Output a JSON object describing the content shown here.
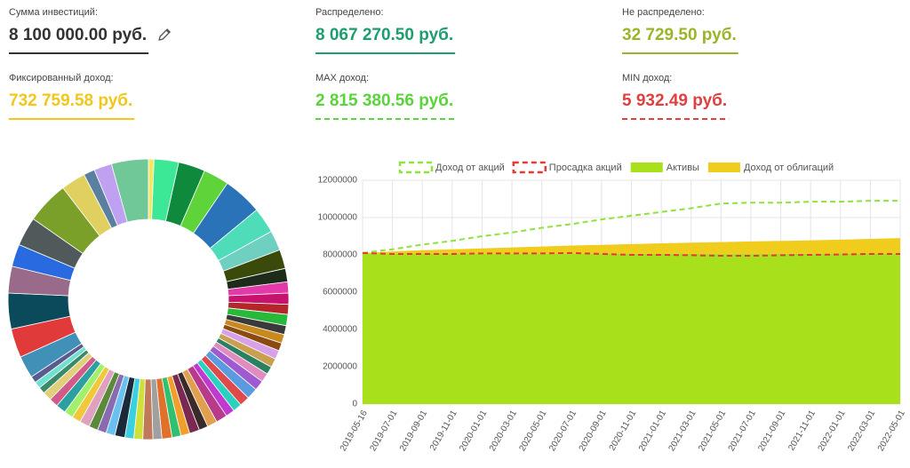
{
  "stats": [
    {
      "label": "Сумма инвестиций:",
      "value": "8 100 000.00 руб.",
      "color": "#333333",
      "underline": "solid"
    },
    {
      "label": "Распределено:",
      "value": "8 067 270.50 руб.",
      "color": "#1e9e6e",
      "underline": "solid"
    },
    {
      "label": "Не распределено:",
      "value": "32 729.50 руб.",
      "color": "#9ab52a",
      "underline": "solid"
    },
    {
      "label": "Фиксированный доход:",
      "value": "732 759.58 руб.",
      "color": "#f2c71b",
      "underline": "solid"
    },
    {
      "label": "MAX доход:",
      "value": "2 815 380.56 руб.",
      "color": "#5ad43a",
      "underline": "dashed"
    },
    {
      "label": "MIN доход:",
      "value": "5 932.49 руб.",
      "color": "#e04040",
      "underline": "dashed"
    }
  ],
  "chart_data": [
    {
      "type": "pie",
      "donut": true,
      "values": [
        0.5,
        2.2,
        2.4,
        2.3,
        3.5,
        2.3,
        1.8,
        1.7,
        1.2,
        1.0,
        1.0,
        0.9,
        1.0,
        0.8,
        0.8,
        0.7,
        0.8,
        0.8,
        0.7,
        0.8,
        0.9,
        1.0,
        0.9,
        0.8,
        0.8,
        1.0,
        0.9,
        0.8,
        0.9,
        0.8,
        0.8,
        0.9,
        0.8,
        0.9,
        0.8,
        0.8,
        0.9,
        0.8,
        0.8,
        0.8,
        0.9,
        0.8,
        0.8,
        0.9,
        0.8,
        0.8,
        0.6,
        0.6,
        0.6,
        2.0,
        2.6,
        3.2,
        2.4,
        2.0,
        2.6,
        3.8,
        2.2,
        1.0,
        1.6,
        3.3
      ],
      "colors": [
        "#f5e663",
        "#3ce896",
        "#0f8a3c",
        "#5fd43a",
        "#2b73b8",
        "#4fdcb8",
        "#6fcfc0",
        "#3a4a0a",
        "#1d2b1a",
        "#e23aa8",
        "#c7126e",
        "#b5262a",
        "#28b83a",
        "#3a3a3a",
        "#c88a1e",
        "#8a4a10",
        "#d8a0e8",
        "#c8a050",
        "#2a8060",
        "#e08cc0",
        "#a05ad0",
        "#5a9ae0",
        "#e04a4a",
        "#2ad0c0",
        "#c03ad0",
        "#b83a8a",
        "#e0a050",
        "#3a2a2a",
        "#7a2a50",
        "#f0a02a",
        "#30c070",
        "#e0702a",
        "#a0a0a0",
        "#c07a5a",
        "#d0e03a",
        "#3ad0e0",
        "#1a2a3a",
        "#6ac0f0",
        "#8a6ab0",
        "#5a8a3a",
        "#e0a0c0",
        "#f0c83a",
        "#a0f06a",
        "#2aa0a0",
        "#d05a8a",
        "#e0d07a",
        "#3a8a6a",
        "#70e0d0",
        "#5a5a90",
        "#4090b8",
        "#e03a3a",
        "#0a4a5a",
        "#9a6a8a",
        "#2a6ae0",
        "#505a5a",
        "#7aa02a",
        "#e0d060",
        "#5a80a0",
        "#c0a0f0",
        "#70c898"
      ]
    },
    {
      "type": "line",
      "stacked": true,
      "grid": true,
      "categories": [
        "2019-05-16",
        "2019-07-01",
        "2019-09-01",
        "2019-11-01",
        "2020-01-01",
        "2020-03-01",
        "2020-05-01",
        "2020-07-01",
        "2020-09-01",
        "2020-11-01",
        "2021-01-01",
        "2021-03-01",
        "2021-05-01",
        "2021-07-01",
        "2021-09-01",
        "2021-11-01",
        "2022-01-01",
        "2022-03-01",
        "2022-05-01"
      ],
      "ylim": [
        0,
        12000000
      ],
      "yticks": [
        0,
        2000000,
        4000000,
        6000000,
        8000000,
        10000000,
        12000000
      ],
      "series": [
        {
          "name": "Доход от акций",
          "kind": "line",
          "dashed": true,
          "color": "#8fe33b",
          "values": [
            8100000,
            8300000,
            8550000,
            8750000,
            9000000,
            9200000,
            9450000,
            9650000,
            9900000,
            10100000,
            10300000,
            10500000,
            10750000,
            10800000,
            10800000,
            10850000,
            10850000,
            10900000,
            10900000
          ]
        },
        {
          "name": "Просадка акций",
          "kind": "line",
          "dashed": true,
          "color": "#e53935",
          "values": [
            8100000,
            8050000,
            8050000,
            8050000,
            8080000,
            8080000,
            8080000,
            8100000,
            8050000,
            8000000,
            8000000,
            7980000,
            7950000,
            7950000,
            7980000,
            8000000,
            8020000,
            8050000,
            8050000
          ]
        },
        {
          "name": "Активы",
          "kind": "area",
          "color": "#a8e01c",
          "values": [
            8067270.5,
            8067270.5,
            8067270.5,
            8067270.5,
            8067270.5,
            8067270.5,
            8067270.5,
            8067270.5,
            8067270.5,
            8067270.5,
            8067270.5,
            8067270.5,
            8067270.5,
            8067270.5,
            8067270.5,
            8067270.5,
            8067270.5,
            8067270.5,
            8067270.5
          ]
        },
        {
          "name": "Доход от облигаций",
          "kind": "area",
          "color": "#f0cc1c",
          "values": [
            30000,
            120000,
            180000,
            230000,
            280000,
            330000,
            380000,
            430000,
            470000,
            510000,
            550000,
            590000,
            620000,
            650000,
            680000,
            710000,
            750000,
            790000,
            830000
          ]
        }
      ]
    }
  ]
}
